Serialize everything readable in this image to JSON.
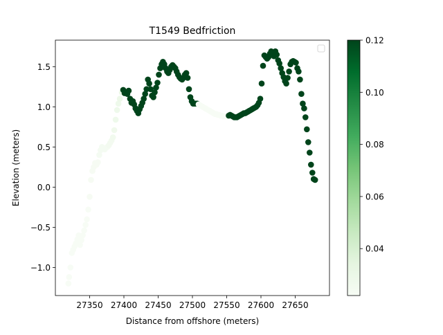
{
  "chart_data": {
    "type": "scatter",
    "title": "T1549 Bedfriction",
    "xlabel": "Distance from offshore (meters)",
    "ylabel": "Elevation (meters)",
    "xlim": [
      27300,
      27700
    ],
    "ylim": [
      -1.35,
      1.83
    ],
    "xticks": [
      27350,
      27400,
      27450,
      27500,
      27550,
      27600,
      27650
    ],
    "xtick_labels": [
      "27350",
      "27400",
      "27450",
      "27500",
      "27550",
      "27600",
      "27650"
    ],
    "yticks": [
      -1.0,
      -0.5,
      0.0,
      0.5,
      1.0,
      1.5
    ],
    "ytick_labels": [
      "−1.0",
      "−0.5",
      "0.0",
      "0.5",
      "1.0",
      "1.5"
    ],
    "legend": {
      "present": true,
      "position": "upper right",
      "entries": []
    },
    "colormap": "Greens",
    "colormap_stops": [
      "#f7fcf5",
      "#e5f5e0",
      "#c7e9c0",
      "#a1d99b",
      "#74c476",
      "#41ab5d",
      "#238b45",
      "#006d2c",
      "#00441b"
    ],
    "colorbar": {
      "vmin": 0.022,
      "vmax": 0.12,
      "ticks": [
        0.04,
        0.06,
        0.08,
        0.1,
        0.12
      ],
      "tick_labels": [
        "0.04",
        "0.06",
        "0.08",
        "0.10",
        "0.12"
      ]
    },
    "points": [
      [
        27319,
        -1.2,
        0.022
      ],
      [
        27320,
        -1.12,
        0.022
      ],
      [
        27322,
        -1.0,
        0.022
      ],
      [
        27324,
        -0.82,
        0.022
      ],
      [
        27326,
        -0.78,
        0.022
      ],
      [
        27328,
        -0.74,
        0.022
      ],
      [
        27330,
        -0.7,
        0.022
      ],
      [
        27332,
        -0.65,
        0.022
      ],
      [
        27334,
        -0.6,
        0.022
      ],
      [
        27336,
        -0.72,
        0.022
      ],
      [
        27338,
        -0.66,
        0.022
      ],
      [
        27340,
        -0.6,
        0.022
      ],
      [
        27342,
        -0.54,
        0.022
      ],
      [
        27344,
        -0.47,
        0.022
      ],
      [
        27346,
        -0.4,
        0.022
      ],
      [
        27348,
        -0.28,
        0.022
      ],
      [
        27350,
        -0.12,
        0.023
      ],
      [
        27352,
        0.09,
        0.023
      ],
      [
        27354,
        0.2,
        0.023
      ],
      [
        27356,
        0.25,
        0.023
      ],
      [
        27358,
        0.3,
        0.023
      ],
      [
        27360,
        0.28,
        0.023
      ],
      [
        27362,
        0.31,
        0.023
      ],
      [
        27364,
        0.4,
        0.024
      ],
      [
        27366,
        0.46,
        0.024
      ],
      [
        27368,
        0.5,
        0.024
      ],
      [
        27370,
        0.48,
        0.024
      ],
      [
        27372,
        0.47,
        0.024
      ],
      [
        27374,
        0.49,
        0.024
      ],
      [
        27376,
        0.5,
        0.024
      ],
      [
        27378,
        0.52,
        0.025
      ],
      [
        27380,
        0.55,
        0.025
      ],
      [
        27382,
        0.58,
        0.025
      ],
      [
        27384,
        0.62,
        0.026
      ],
      [
        27386,
        0.71,
        0.027
      ],
      [
        27388,
        0.84,
        0.028
      ],
      [
        27390,
        0.96,
        0.028
      ],
      [
        27392,
        1.04,
        0.028
      ],
      [
        27394,
        1.1,
        0.029
      ],
      [
        27397,
        1.18,
        0.03
      ],
      [
        27399,
        1.21,
        0.12
      ],
      [
        27401,
        1.17,
        0.12
      ],
      [
        27403,
        1.18,
        0.12
      ],
      [
        27405,
        1.16,
        0.12
      ],
      [
        27407,
        1.2,
        0.12
      ],
      [
        27409,
        1.1,
        0.12
      ],
      [
        27411,
        1.05,
        0.12
      ],
      [
        27413,
        1.07,
        0.12
      ],
      [
        27415,
        1.03,
        0.12
      ],
      [
        27417,
        0.98,
        0.12
      ],
      [
        27419,
        0.95,
        0.12
      ],
      [
        27421,
        0.92,
        0.12
      ],
      [
        27423,
        0.97,
        0.12
      ],
      [
        27425,
        1.01,
        0.12
      ],
      [
        27427,
        1.05,
        0.12
      ],
      [
        27429,
        1.1,
        0.12
      ],
      [
        27431,
        1.16,
        0.12
      ],
      [
        27433,
        1.22,
        0.12
      ],
      [
        27435,
        1.34,
        0.12
      ],
      [
        27437,
        1.29,
        0.12
      ],
      [
        27439,
        1.22,
        0.12
      ],
      [
        27441,
        1.14,
        0.12
      ],
      [
        27443,
        1.12,
        0.12
      ],
      [
        27445,
        1.18,
        0.12
      ],
      [
        27447,
        1.24,
        0.12
      ],
      [
        27449,
        1.3,
        0.12
      ],
      [
        27451,
        1.4,
        0.12
      ],
      [
        27453,
        1.48,
        0.12
      ],
      [
        27455,
        1.53,
        0.12
      ],
      [
        27457,
        1.56,
        0.12
      ],
      [
        27459,
        1.53,
        0.12
      ],
      [
        27461,
        1.48,
        0.12
      ],
      [
        27463,
        1.44,
        0.12
      ],
      [
        27465,
        1.42,
        0.12
      ],
      [
        27467,
        1.46,
        0.12
      ],
      [
        27469,
        1.5,
        0.12
      ],
      [
        27471,
        1.52,
        0.12
      ],
      [
        27473,
        1.5,
        0.12
      ],
      [
        27475,
        1.48,
        0.12
      ],
      [
        27477,
        1.44,
        0.12
      ],
      [
        27479,
        1.4,
        0.12
      ],
      [
        27481,
        1.37,
        0.12
      ],
      [
        27483,
        1.35,
        0.12
      ],
      [
        27485,
        1.34,
        0.12
      ],
      [
        27487,
        1.36,
        0.12
      ],
      [
        27489,
        1.4,
        0.12
      ],
      [
        27491,
        1.42,
        0.12
      ],
      [
        27493,
        1.36,
        0.12
      ],
      [
        27495,
        1.22,
        0.12
      ],
      [
        27497,
        1.12,
        0.12
      ],
      [
        27499,
        1.07,
        0.12
      ],
      [
        27501,
        1.04,
        0.12
      ],
      [
        27503,
        1.04,
        0.12
      ],
      [
        27505,
        1.04,
        0.12
      ],
      [
        27507,
        1.04,
        0.12
      ],
      [
        27509,
        1.03,
        0.022
      ],
      [
        27511,
        1.02,
        0.022
      ],
      [
        27513,
        1.01,
        0.022
      ],
      [
        27515,
        1.0,
        0.022
      ],
      [
        27517,
        0.99,
        0.022
      ],
      [
        27519,
        0.98,
        0.022
      ],
      [
        27521,
        0.97,
        0.022
      ],
      [
        27523,
        0.96,
        0.022
      ],
      [
        27525,
        0.95,
        0.022
      ],
      [
        27527,
        0.94,
        0.022
      ],
      [
        27529,
        0.93,
        0.022
      ],
      [
        27531,
        0.92,
        0.022
      ],
      [
        27533,
        0.91,
        0.022
      ],
      [
        27535,
        0.91,
        0.022
      ],
      [
        27537,
        0.9,
        0.022
      ],
      [
        27539,
        0.9,
        0.022
      ],
      [
        27541,
        0.89,
        0.022
      ],
      [
        27543,
        0.89,
        0.022
      ],
      [
        27545,
        0.88,
        0.022
      ],
      [
        27547,
        0.88,
        0.022
      ],
      [
        27549,
        0.88,
        0.022
      ],
      [
        27551,
        0.88,
        0.022
      ],
      [
        27553,
        0.89,
        0.12
      ],
      [
        27555,
        0.9,
        0.12
      ],
      [
        27557,
        0.89,
        0.12
      ],
      [
        27559,
        0.88,
        0.12
      ],
      [
        27561,
        0.87,
        0.12
      ],
      [
        27563,
        0.87,
        0.12
      ],
      [
        27565,
        0.87,
        0.12
      ],
      [
        27567,
        0.88,
        0.12
      ],
      [
        27569,
        0.89,
        0.12
      ],
      [
        27571,
        0.9,
        0.12
      ],
      [
        27573,
        0.91,
        0.12
      ],
      [
        27575,
        0.92,
        0.12
      ],
      [
        27577,
        0.92,
        0.12
      ],
      [
        27579,
        0.93,
        0.12
      ],
      [
        27581,
        0.94,
        0.12
      ],
      [
        27583,
        0.95,
        0.12
      ],
      [
        27585,
        0.96,
        0.12
      ],
      [
        27587,
        0.97,
        0.12
      ],
      [
        27589,
        0.98,
        0.12
      ],
      [
        27591,
        0.99,
        0.12
      ],
      [
        27593,
        1.0,
        0.12
      ],
      [
        27595,
        1.02,
        0.12
      ],
      [
        27597,
        1.05,
        0.12
      ],
      [
        27599,
        1.1,
        0.12
      ],
      [
        27601,
        1.29,
        0.12
      ],
      [
        27603,
        1.51,
        0.12
      ],
      [
        27605,
        1.64,
        0.12
      ],
      [
        27607,
        1.62,
        0.12
      ],
      [
        27609,
        1.6,
        0.12
      ],
      [
        27611,
        1.62,
        0.12
      ],
      [
        27613,
        1.66,
        0.12
      ],
      [
        27615,
        1.69,
        0.12
      ],
      [
        27617,
        1.67,
        0.12
      ],
      [
        27619,
        1.63,
        0.12
      ],
      [
        27621,
        1.69,
        0.12
      ],
      [
        27623,
        1.65,
        0.12
      ],
      [
        27625,
        1.58,
        0.12
      ],
      [
        27627,
        1.54,
        0.12
      ],
      [
        27629,
        1.48,
        0.12
      ],
      [
        27631,
        1.42,
        0.12
      ],
      [
        27633,
        1.37,
        0.12
      ],
      [
        27635,
        1.32,
        0.12
      ],
      [
        27637,
        1.29,
        0.12
      ],
      [
        27639,
        1.36,
        0.12
      ],
      [
        27641,
        1.44,
        0.12
      ],
      [
        27643,
        1.53,
        0.12
      ],
      [
        27645,
        1.56,
        0.12
      ],
      [
        27647,
        1.57,
        0.12
      ],
      [
        27649,
        1.56,
        0.12
      ],
      [
        27651,
        1.55,
        0.12
      ],
      [
        27653,
        1.48,
        0.12
      ],
      [
        27655,
        1.44,
        0.12
      ],
      [
        27657,
        1.34,
        0.12
      ],
      [
        27659,
        1.16,
        0.12
      ],
      [
        27661,
        1.04,
        0.12
      ],
      [
        27663,
        0.98,
        0.12
      ],
      [
        27665,
        0.87,
        0.12
      ],
      [
        27667,
        0.72,
        0.12
      ],
      [
        27669,
        0.56,
        0.12
      ],
      [
        27671,
        0.43,
        0.12
      ],
      [
        27673,
        0.28,
        0.12
      ],
      [
        27675,
        0.18,
        0.12
      ],
      [
        27677,
        0.1,
        0.12
      ],
      [
        27679,
        0.09,
        0.12
      ]
    ]
  }
}
